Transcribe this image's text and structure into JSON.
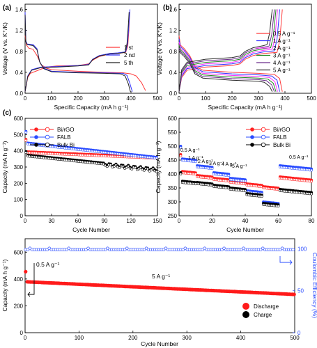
{
  "chart_data": [
    {
      "id": "a",
      "panel_label": "(a)",
      "type": "line",
      "xlabel": "Specific Capacity (mA h g⁻¹)",
      "ylabel": "Voltage (V vs. K⁺/K)",
      "xlim": [
        0,
        500
      ],
      "ylim": [
        0,
        1.7
      ],
      "xticks": [
        0,
        100,
        200,
        300,
        400,
        500
      ],
      "yticks": [
        0.0,
        0.4,
        0.8,
        1.2,
        1.6
      ],
      "legend_position": "right",
      "series": [
        {
          "name": "1 st",
          "color": "#ff3b3b",
          "segments": [
            [
              [
                0,
                1.1
              ],
              [
                5,
                0.92
              ],
              [
                14,
                0.86
              ],
              [
                30,
                0.84
              ],
              [
                45,
                0.72
              ],
              [
                60,
                0.55
              ],
              [
                80,
                0.48
              ],
              [
                100,
                0.45
              ],
              [
                200,
                0.42
              ],
              [
                300,
                0.4
              ],
              [
                370,
                0.39
              ],
              [
                400,
                0.37
              ],
              [
                420,
                0.33
              ],
              [
                440,
                0.2
              ],
              [
                455,
                0.05
              ]
            ],
            [
              [
                0,
                0.03
              ],
              [
                10,
                0.3
              ],
              [
                20,
                0.38
              ],
              [
                40,
                0.42
              ],
              [
                80,
                0.5
              ],
              [
                120,
                0.52
              ],
              [
                200,
                0.53
              ],
              [
                240,
                0.56
              ],
              [
                255,
                0.63
              ],
              [
                280,
                0.7
              ],
              [
                320,
                0.75
              ],
              [
                350,
                0.76
              ],
              [
                380,
                0.78
              ],
              [
                388,
                0.9
              ],
              [
                392,
                1.2
              ],
              [
                395,
                1.55
              ]
            ]
          ]
        },
        {
          "name": "2 nd",
          "color": "#3030ff",
          "segments": [
            [
              [
                0,
                1.55
              ],
              [
                3,
                1.0
              ],
              [
                8,
                0.94
              ],
              [
                30,
                0.93
              ],
              [
                45,
                0.85
              ],
              [
                55,
                0.6
              ],
              [
                70,
                0.48
              ],
              [
                100,
                0.42
              ],
              [
                200,
                0.4
              ],
              [
                300,
                0.39
              ],
              [
                370,
                0.38
              ],
              [
                385,
                0.34
              ],
              [
                395,
                0.2
              ],
              [
                405,
                0.03
              ]
            ],
            [
              [
                0,
                0.03
              ],
              [
                10,
                0.33
              ],
              [
                25,
                0.45
              ],
              [
                60,
                0.5
              ],
              [
                120,
                0.51
              ],
              [
                200,
                0.53
              ],
              [
                240,
                0.55
              ],
              [
                255,
                0.65
              ],
              [
                280,
                0.72
              ],
              [
                320,
                0.76
              ],
              [
                350,
                0.77
              ],
              [
                380,
                0.79
              ],
              [
                387,
                0.95
              ],
              [
                392,
                1.3
              ],
              [
                396,
                1.6
              ]
            ]
          ]
        },
        {
          "name": "5 th",
          "color": "#222222",
          "segments": [
            [
              [
                0,
                1.5
              ],
              [
                3,
                0.98
              ],
              [
                8,
                0.93
              ],
              [
                30,
                0.91
              ],
              [
                45,
                0.83
              ],
              [
                55,
                0.6
              ],
              [
                70,
                0.47
              ],
              [
                100,
                0.41
              ],
              [
                200,
                0.39
              ],
              [
                300,
                0.38
              ],
              [
                360,
                0.37
              ],
              [
                378,
                0.33
              ],
              [
                390,
                0.18
              ],
              [
                398,
                0.03
              ]
            ],
            [
              [
                0,
                0.03
              ],
              [
                10,
                0.32
              ],
              [
                25,
                0.44
              ],
              [
                60,
                0.49
              ],
              [
                120,
                0.5
              ],
              [
                200,
                0.52
              ],
              [
                240,
                0.54
              ],
              [
                255,
                0.64
              ],
              [
                280,
                0.71
              ],
              [
                320,
                0.75
              ],
              [
                350,
                0.76
              ],
              [
                378,
                0.78
              ],
              [
                385,
                0.95
              ],
              [
                390,
                1.3
              ],
              [
                393,
                1.55
              ]
            ]
          ]
        }
      ]
    },
    {
      "id": "b",
      "panel_label": "(b)",
      "type": "line",
      "xlabel": "Specific Capacity (mA h g⁻¹)",
      "ylabel": "Voltage (V vs. K⁺/K)",
      "xlim": [
        0,
        500
      ],
      "ylim": [
        0,
        1.7
      ],
      "xticks": [
        0,
        100,
        200,
        300,
        400,
        500
      ],
      "yticks": [
        0.0,
        0.4,
        0.8,
        1.2,
        1.6
      ],
      "legend_position": "right",
      "series": [
        {
          "name": "0.5 A g⁻¹",
          "color": "#ff3b3b",
          "shift": 0.0,
          "end": 390
        },
        {
          "name": "1 A g⁻¹",
          "color": "#3030ff",
          "shift": 0.03,
          "end": 380
        },
        {
          "name": "2 A g⁻¹",
          "color": "#ff30ff",
          "shift": 0.06,
          "end": 372
        },
        {
          "name": "3 A g⁻¹",
          "color": "#228b22",
          "shift": 0.09,
          "end": 366
        },
        {
          "name": "4 A g⁻¹",
          "color": "#6b2c8c",
          "shift": 0.12,
          "end": 360
        },
        {
          "name": "5 A g⁻¹",
          "color": "#2a2a2a",
          "shift": 0.15,
          "end": 352
        }
      ]
    },
    {
      "id": "c-left",
      "panel_label": "(c)",
      "type": "scatter",
      "xlabel": "Cycle Number",
      "ylabel": "Capacity (mA h g⁻¹)",
      "xlim": [
        0,
        150
      ],
      "ylim": [
        0,
        600
      ],
      "xticks": [
        0,
        30,
        60,
        90,
        120,
        150
      ],
      "yticks": [
        0,
        100,
        200,
        300,
        400,
        500,
        600
      ],
      "legend_position": "top-left",
      "series": [
        {
          "name": "Bi/rGO",
          "color": "#ff2020",
          "start": 395,
          "end": 360,
          "first": 470
        },
        {
          "name": "FALB",
          "color": "#2a4cff",
          "start": 450,
          "end": 360,
          "first": 520
        },
        {
          "name": "Bulk Bi",
          "color": "#000000",
          "start": 375,
          "end": 290,
          "first": 395
        }
      ]
    },
    {
      "id": "c-right",
      "type": "scatter",
      "xlabel": "Cycle Number",
      "ylabel": "Capacity (mA h g⁻¹)",
      "xlim": [
        0,
        80
      ],
      "ylim": [
        250,
        600
      ],
      "xticks": [
        0,
        20,
        40,
        60,
        80
      ],
      "yticks": [
        250,
        300,
        350,
        400,
        450,
        500,
        550,
        600
      ],
      "legend_position": "top-right",
      "annotations": [
        "0.5 A g⁻¹",
        "1 A g⁻¹",
        "2 A g⁻¹",
        "3 A g⁻¹",
        "4 A g⁻¹",
        "5 A g⁻¹",
        "0.5 A g⁻¹"
      ],
      "series": [
        {
          "name": "Bi/rGO",
          "color": "#ff2020",
          "levels": [
            410,
            395,
            385,
            375,
            365,
            355,
            390
          ]
        },
        {
          "name": "FALB",
          "color": "#2a4cff",
          "levels": [
            455,
            430,
            405,
            385,
            340,
            300,
            430
          ]
        },
        {
          "name": "Bulk Bi",
          "color": "#000000",
          "levels": [
            375,
            370,
            360,
            350,
            330,
            295,
            345
          ]
        }
      ]
    },
    {
      "id": "long-cycle",
      "type": "scatter",
      "xlabel": "Cycle Number",
      "ylabel": "Capacity (mA h g⁻¹)",
      "y2label": "Coulombic Efficiency (%)",
      "xlim": [
        0,
        500
      ],
      "ylim": [
        0,
        700
      ],
      "y2lim": [
        0,
        112
      ],
      "xticks": [
        0,
        100,
        200,
        300,
        400,
        500
      ],
      "yticks": [
        0,
        200,
        400,
        600
      ],
      "y2ticks": [
        0,
        50,
        100
      ],
      "annotations": [
        "0.5 A g⁻¹",
        "5 A g⁻¹"
      ],
      "legend_position": "bottom-right",
      "series": [
        {
          "name": "Discharge",
          "color": "#ff1a1a",
          "start": 380,
          "end": 285,
          "first": 455
        },
        {
          "name": "Charge",
          "color": "#000000"
        },
        {
          "name": "Coulombic Efficiency",
          "color": "#2a4cff",
          "value": 99
        }
      ]
    }
  ]
}
